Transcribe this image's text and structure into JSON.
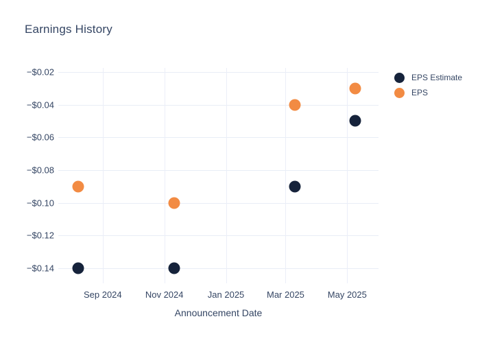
{
  "chart_data": {
    "type": "scatter",
    "title": "Earnings History",
    "xlabel": "Announcement Date",
    "ylabel": "",
    "grid": true,
    "legend_position": "right",
    "background_color": "#ffffff",
    "text_color": "#344563",
    "x_axis": {
      "range_dates": [
        "2024-07-19",
        "2025-06-01"
      ],
      "ticks": [
        {
          "label": "Sep 2024",
          "date": "2024-09-01"
        },
        {
          "label": "Nov 2024",
          "date": "2024-11-01"
        },
        {
          "label": "Jan 2025",
          "date": "2025-01-01"
        },
        {
          "label": "Mar 2025",
          "date": "2025-03-01"
        },
        {
          "label": "May 2025",
          "date": "2025-05-01"
        }
      ]
    },
    "y_axis": {
      "range": [
        -0.1493,
        -0.0175
      ],
      "tick_format": "usd",
      "ticks": [
        {
          "label": "−$0.02",
          "value": -0.02
        },
        {
          "label": "−$0.04",
          "value": -0.04
        },
        {
          "label": "−$0.06",
          "value": -0.06
        },
        {
          "label": "−$0.08",
          "value": -0.08
        },
        {
          "label": "−$0.10",
          "value": -0.1
        },
        {
          "label": "−$0.12",
          "value": -0.12
        },
        {
          "label": "−$0.14",
          "value": -0.14
        }
      ]
    },
    "series": [
      {
        "name": "EPS Estimate",
        "color": "#16233b",
        "marker": "circle",
        "points": [
          {
            "date_approx": "2024-08-08",
            "value": -0.14
          },
          {
            "date_approx": "2024-11-11",
            "value": -0.14
          },
          {
            "date_approx": "2025-03-10",
            "value": -0.09
          },
          {
            "date_approx": "2025-05-09",
            "value": -0.05
          }
        ]
      },
      {
        "name": "EPS",
        "color": "#f28b43",
        "marker": "circle",
        "points": [
          {
            "date_approx": "2024-08-08",
            "value": -0.09
          },
          {
            "date_approx": "2024-11-11",
            "value": -0.1
          },
          {
            "date_approx": "2025-03-10",
            "value": -0.04
          },
          {
            "date_approx": "2025-05-09",
            "value": -0.03
          }
        ]
      }
    ]
  }
}
